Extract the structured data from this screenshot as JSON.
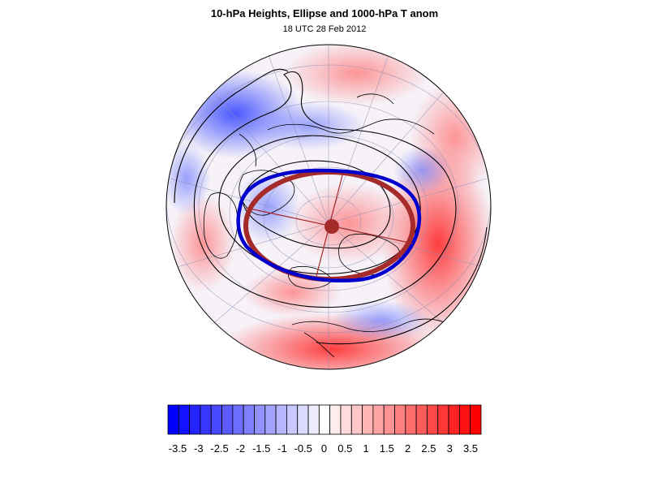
{
  "title": "10-hPa Heights, Ellipse and 1000-hPa T anom",
  "subtitle": "18 UTC 28 Feb 2012",
  "colorbar": {
    "tick_labels": [
      "-3.5",
      "-3",
      "-2.5",
      "-2",
      "-1.5",
      "-1",
      "-0.5",
      "0",
      "0.5",
      "1",
      "1.5",
      "2",
      "2.5",
      "3",
      "3.5"
    ],
    "levels": [
      -3.5,
      -3.25,
      -3.0,
      -2.75,
      -2.5,
      -2.25,
      -2.0,
      -1.75,
      -1.5,
      -1.25,
      -1.0,
      -0.75,
      -0.5,
      -0.25,
      0.0,
      0.25,
      0.5,
      0.75,
      1.0,
      1.25,
      1.5,
      1.75,
      2.0,
      2.25,
      2.5,
      2.75,
      3.0,
      3.25,
      3.5
    ],
    "colors": {
      "negative_max": "#0000ff",
      "neutral": "#ffffff",
      "positive_max": "#ff0000"
    }
  },
  "map": {
    "projection": "orthographic-north-polar",
    "ellipse_colors": {
      "observed": "#0000cc",
      "fitted": "#a52a2a"
    },
    "contour_color": "#000000",
    "coastline_color": "#000000",
    "grid_color": "#8c8cb4"
  }
}
